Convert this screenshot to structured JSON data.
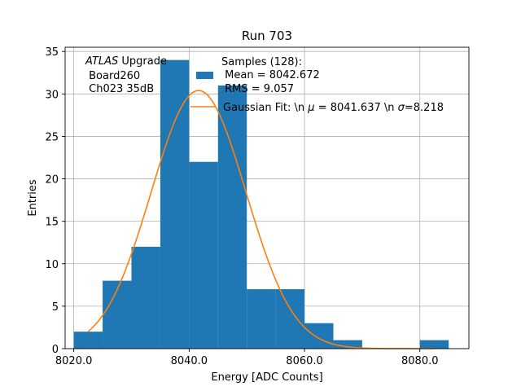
{
  "chart_data": {
    "type": "bar",
    "title": "Run 703",
    "xlabel": "Energy [ADC Counts]",
    "ylabel": "Entries",
    "xlim": [
      8018.5,
      8088.5
    ],
    "ylim": [
      0,
      35.5
    ],
    "xticks": [
      8020,
      8040,
      8060,
      8080
    ],
    "xtick_labels": [
      "8020.0",
      "8040.0",
      "8060.0",
      "8080.0"
    ],
    "yticks": [
      0,
      5,
      10,
      15,
      20,
      25,
      30,
      35
    ],
    "ytick_labels": [
      "0",
      "5",
      "10",
      "15",
      "20",
      "25",
      "30",
      "35"
    ],
    "grid": true,
    "histogram": {
      "bin_edges": [
        8020,
        8025,
        8030,
        8035,
        8040,
        8045,
        8050,
        8055,
        8060,
        8065,
        8070,
        8075,
        8080,
        8085
      ],
      "counts": [
        2,
        8,
        12,
        34,
        22,
        31,
        7,
        7,
        3,
        1,
        0,
        0,
        1
      ],
      "color": "#1f77b4"
    },
    "fit": {
      "mu": 8041.637,
      "sigma": 8.218,
      "amplitude": 30.4,
      "x_range": [
        8022.5,
        8082.5
      ],
      "color": "#ff7f0e"
    },
    "annotation": {
      "line1_italic": "ATLAS",
      "line1_rest": " Upgrade",
      "line2": " Board260",
      "line3": " Ch023 35dB"
    },
    "legend": {
      "placement": "top-right",
      "hist_line1": "Samples (128):",
      "hist_line2": " Mean = 8042.672",
      "hist_line3": " RMS = 9.057",
      "fit_prefix": "Gaussian Fit: \\n ",
      "fit_mu_symbol": "μ",
      "fit_mu_value": " = 8041.637 \\n ",
      "fit_sigma_symbol": "σ",
      "fit_sigma_value": "=8.218"
    }
  }
}
